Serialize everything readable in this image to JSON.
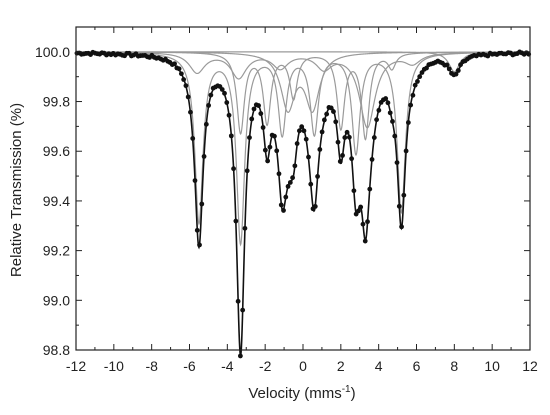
{
  "chart_data": {
    "type": "scatter",
    "xlabel": "Velocity (mms",
    "xlabel_sup": "-1",
    "xlabel_tail": ")",
    "ylabel": "Relative Transmission (%)",
    "xlim": [
      -12,
      12
    ],
    "ylim": [
      98.8,
      100.1
    ],
    "x_ticks": [
      -12,
      -10,
      -8,
      -6,
      -4,
      -2,
      0,
      2,
      4,
      6,
      8,
      10,
      12
    ],
    "x_tick_labels": [
      "-12",
      "-10",
      "-8",
      "-6",
      "-4",
      "-2",
      "0",
      "2",
      "4",
      "6",
      "8",
      "10",
      "12"
    ],
    "y_ticks": [
      98.8,
      99.0,
      99.2,
      99.4,
      99.6,
      99.8,
      100.0
    ],
    "y_tick_labels": [
      "98.8",
      "99.0",
      "99.2",
      "99.4",
      "99.6",
      "99.8",
      "100.0"
    ],
    "grid": false,
    "legend": "none",
    "colors": {
      "data_points": "#111111",
      "total_fit": "#111111",
      "components": "#9a9a9a",
      "axes": "#222222"
    },
    "series": [
      {
        "kind": "component-sextet",
        "x": [
          -5.5,
          -3.3,
          -1.1,
          0.6,
          2.8,
          5.2
        ],
        "depth": [
          0.68,
          0.76,
          0.32,
          0.32,
          0.4,
          0.64
        ],
        "width": [
          0.26,
          0.26,
          0.26,
          0.26,
          0.26,
          0.26
        ]
      },
      {
        "kind": "component-sextet",
        "x": [
          -3.3,
          -1.9,
          -0.5,
          2.0,
          3.3,
          4.7
        ],
        "depth": [
          0.32,
          0.28,
          0.18,
          0.3,
          0.34,
          0.06
        ],
        "width": [
          0.24,
          0.24,
          0.24,
          0.24,
          0.24,
          0.24
        ]
      },
      {
        "kind": "component-doublet",
        "x": [
          -0.8,
          0.5
        ],
        "depth": [
          0.22,
          0.22
        ],
        "width": [
          0.45,
          0.45
        ]
      },
      {
        "kind": "component-sextet",
        "x": [
          -5.6,
          -3.4,
          -1.2,
          1.1,
          3.4,
          5.8
        ],
        "depth": [
          0.08,
          0.1,
          0.06,
          0.06,
          0.3,
          0.04
        ],
        "width": [
          0.5,
          0.5,
          0.5,
          0.5,
          0.5,
          0.5
        ]
      },
      {
        "kind": "component-singlet",
        "x": [
          8.0
        ],
        "depth": [
          0.08
        ],
        "width": [
          0.35
        ]
      }
    ],
    "baseline": 100.0
  }
}
